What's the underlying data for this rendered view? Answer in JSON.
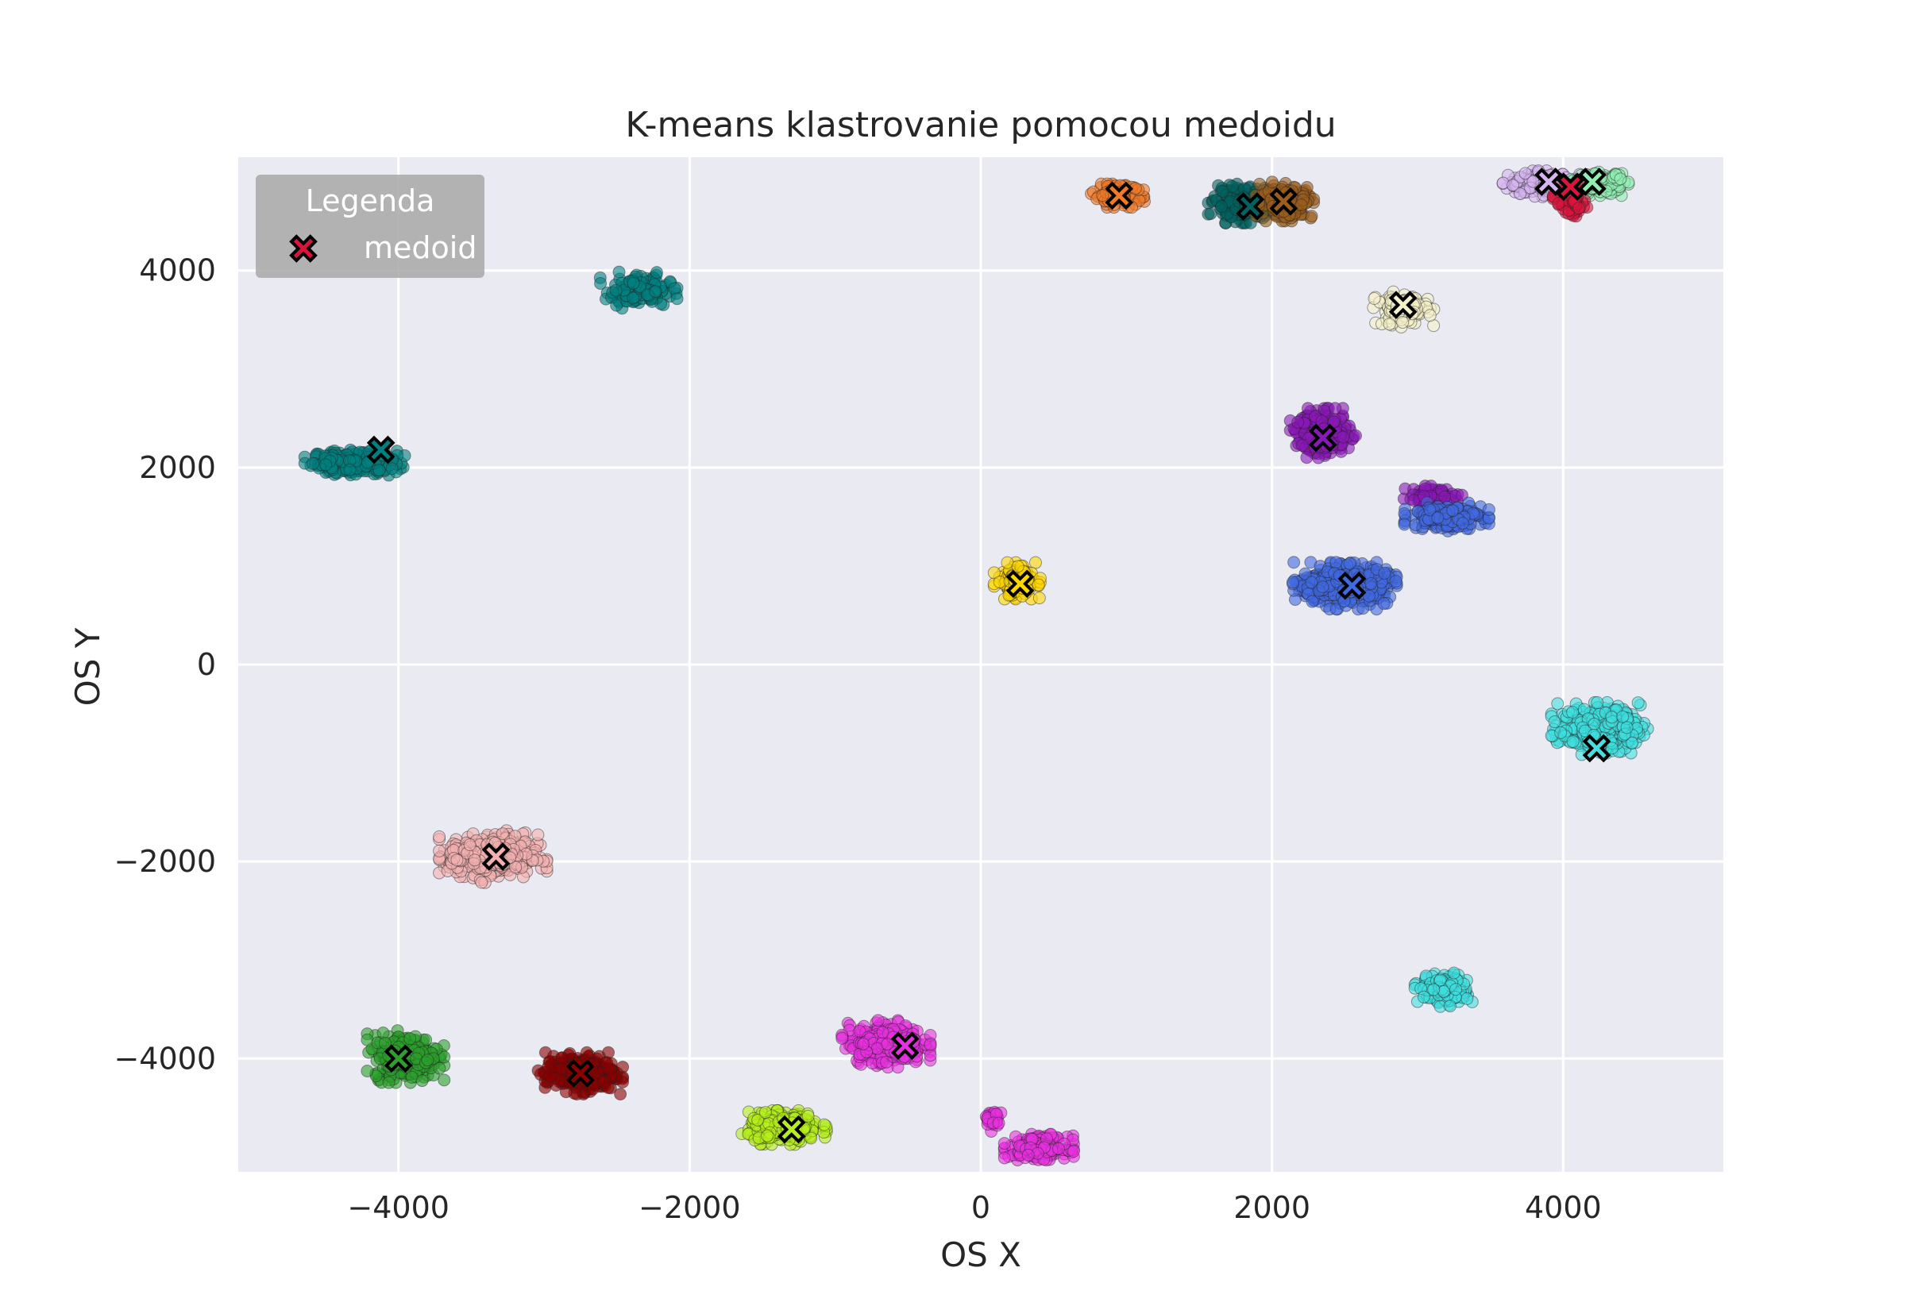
{
  "chart_data": {
    "type": "scatter",
    "title": "K-means klastrovanie pomocou medoidu",
    "xlabel": "OS X",
    "ylabel": "OS Y",
    "xlim": [
      -5100,
      5100
    ],
    "ylim": [
      -5150,
      5150
    ],
    "xticks": [
      -4000,
      -2000,
      0,
      2000,
      4000
    ],
    "yticks": [
      -4000,
      -2000,
      0,
      2000,
      4000
    ],
    "xtick_labels": [
      "−4000",
      "−2000",
      "0",
      "2000",
      "4000"
    ],
    "ytick_labels": [
      "−4000",
      "−2000",
      "0",
      "2000",
      "4000"
    ],
    "grid": true,
    "background": "#eaeaf2",
    "legend": {
      "title": "Legenda",
      "position": "top-left",
      "entries": [
        {
          "label": "medoid",
          "marker": "x-filled",
          "color": "#dc143c"
        }
      ]
    },
    "clusters": [
      {
        "id": 0,
        "color": "#008080",
        "center": [
          -4300,
          2050
        ],
        "spread": [
          260,
          110
        ],
        "count": 230,
        "medoid": [
          -4120,
          2180
        ]
      },
      {
        "id": 1,
        "color": "#008080",
        "center": [
          -2350,
          3800
        ],
        "spread": [
          200,
          140
        ],
        "count": 130,
        "medoid": null
      },
      {
        "id": 2,
        "color": "#00635f",
        "center": [
          1800,
          4680
        ],
        "spread": [
          180,
          150
        ],
        "count": 230,
        "medoid": [
          1850,
          4650
        ]
      },
      {
        "id": 3,
        "color": "#f07a2a",
        "center": [
          950,
          4760
        ],
        "spread": [
          150,
          90
        ],
        "count": 120,
        "medoid": [
          950,
          4760
        ]
      },
      {
        "id": 4,
        "color": "#9b5d1d",
        "center": [
          2100,
          4700
        ],
        "spread": [
          160,
          150
        ],
        "count": 200,
        "medoid": [
          2080,
          4700
        ]
      },
      {
        "id": 5,
        "color": "#d5b4f0",
        "center": [
          3850,
          4880
        ],
        "spread": [
          200,
          100
        ],
        "count": 180,
        "medoid": [
          3900,
          4900
        ]
      },
      {
        "id": 6,
        "color": "#90eeb0",
        "center": [
          4250,
          4880
        ],
        "spread": [
          150,
          90
        ],
        "count": 150,
        "medoid": [
          4200,
          4900
        ]
      },
      {
        "id": 7,
        "color": "#dc143c",
        "center": [
          4050,
          4700
        ],
        "spread": [
          90,
          130
        ],
        "count": 80,
        "medoid": [
          4050,
          4850
        ]
      },
      {
        "id": 8,
        "color": "#f5f0c8",
        "center": [
          2900,
          3600
        ],
        "spread": [
          160,
          140
        ],
        "count": 150,
        "medoid": [
          2900,
          3650
        ]
      },
      {
        "id": 9,
        "color": "#8b18b8",
        "center": [
          2350,
          2350
        ],
        "spread": [
          170,
          190
        ],
        "count": 250,
        "medoid": [
          2350,
          2300
        ]
      },
      {
        "id": 10,
        "color": "#8b18b8",
        "center": [
          3100,
          1720
        ],
        "spread": [
          180,
          70
        ],
        "count": 70,
        "medoid": null
      },
      {
        "id": 11,
        "color": "#4169e1",
        "center": [
          3200,
          1500
        ],
        "spread": [
          220,
          110
        ],
        "count": 200,
        "medoid": null
      },
      {
        "id": 12,
        "color": "#4169e1",
        "center": [
          2500,
          800
        ],
        "spread": [
          270,
          180
        ],
        "count": 420,
        "medoid": [
          2550,
          800
        ]
      },
      {
        "id": 13,
        "color": "#ffd700",
        "center": [
          250,
          850
        ],
        "spread": [
          120,
          140
        ],
        "count": 140,
        "medoid": [
          270,
          820
        ]
      },
      {
        "id": 14,
        "color": "#40e0e0",
        "center": [
          4250,
          -650
        ],
        "spread": [
          250,
          200
        ],
        "count": 350,
        "medoid": [
          4230,
          -850
        ]
      },
      {
        "id": 15,
        "color": "#40e0e0",
        "center": [
          3180,
          -3300
        ],
        "spread": [
          150,
          130
        ],
        "count": 170,
        "medoid": null
      },
      {
        "id": 16,
        "color": "#f4b0b0",
        "center": [
          -3350,
          -1950
        ],
        "spread": [
          280,
          200
        ],
        "count": 380,
        "medoid": [
          -3330,
          -1950
        ]
      },
      {
        "id": 17,
        "color": "#2ca02c",
        "center": [
          -3950,
          -3980
        ],
        "spread": [
          200,
          200
        ],
        "count": 300,
        "medoid": [
          -4000,
          -4000
        ]
      },
      {
        "id": 18,
        "color": "#8b0000",
        "center": [
          -2750,
          -4150
        ],
        "spread": [
          220,
          160
        ],
        "count": 300,
        "medoid": [
          -2750,
          -4150
        ]
      },
      {
        "id": 19,
        "color": "#e830e0",
        "center": [
          -650,
          -3850
        ],
        "spread": [
          230,
          180
        ],
        "count": 320,
        "medoid": [
          -520,
          -3870
        ]
      },
      {
        "id": 20,
        "color": "#b5f01c",
        "center": [
          -1350,
          -4700
        ],
        "spread": [
          220,
          130
        ],
        "count": 340,
        "medoid": [
          -1300,
          -4720
        ]
      },
      {
        "id": 21,
        "color": "#e830e0",
        "center": [
          400,
          -4900
        ],
        "spread": [
          180,
          100
        ],
        "count": 200,
        "medoid": null
      },
      {
        "id": 22,
        "color": "#e830e0",
        "center": [
          80,
          -4620
        ],
        "spread": [
          60,
          90
        ],
        "count": 30,
        "medoid": null
      }
    ]
  }
}
